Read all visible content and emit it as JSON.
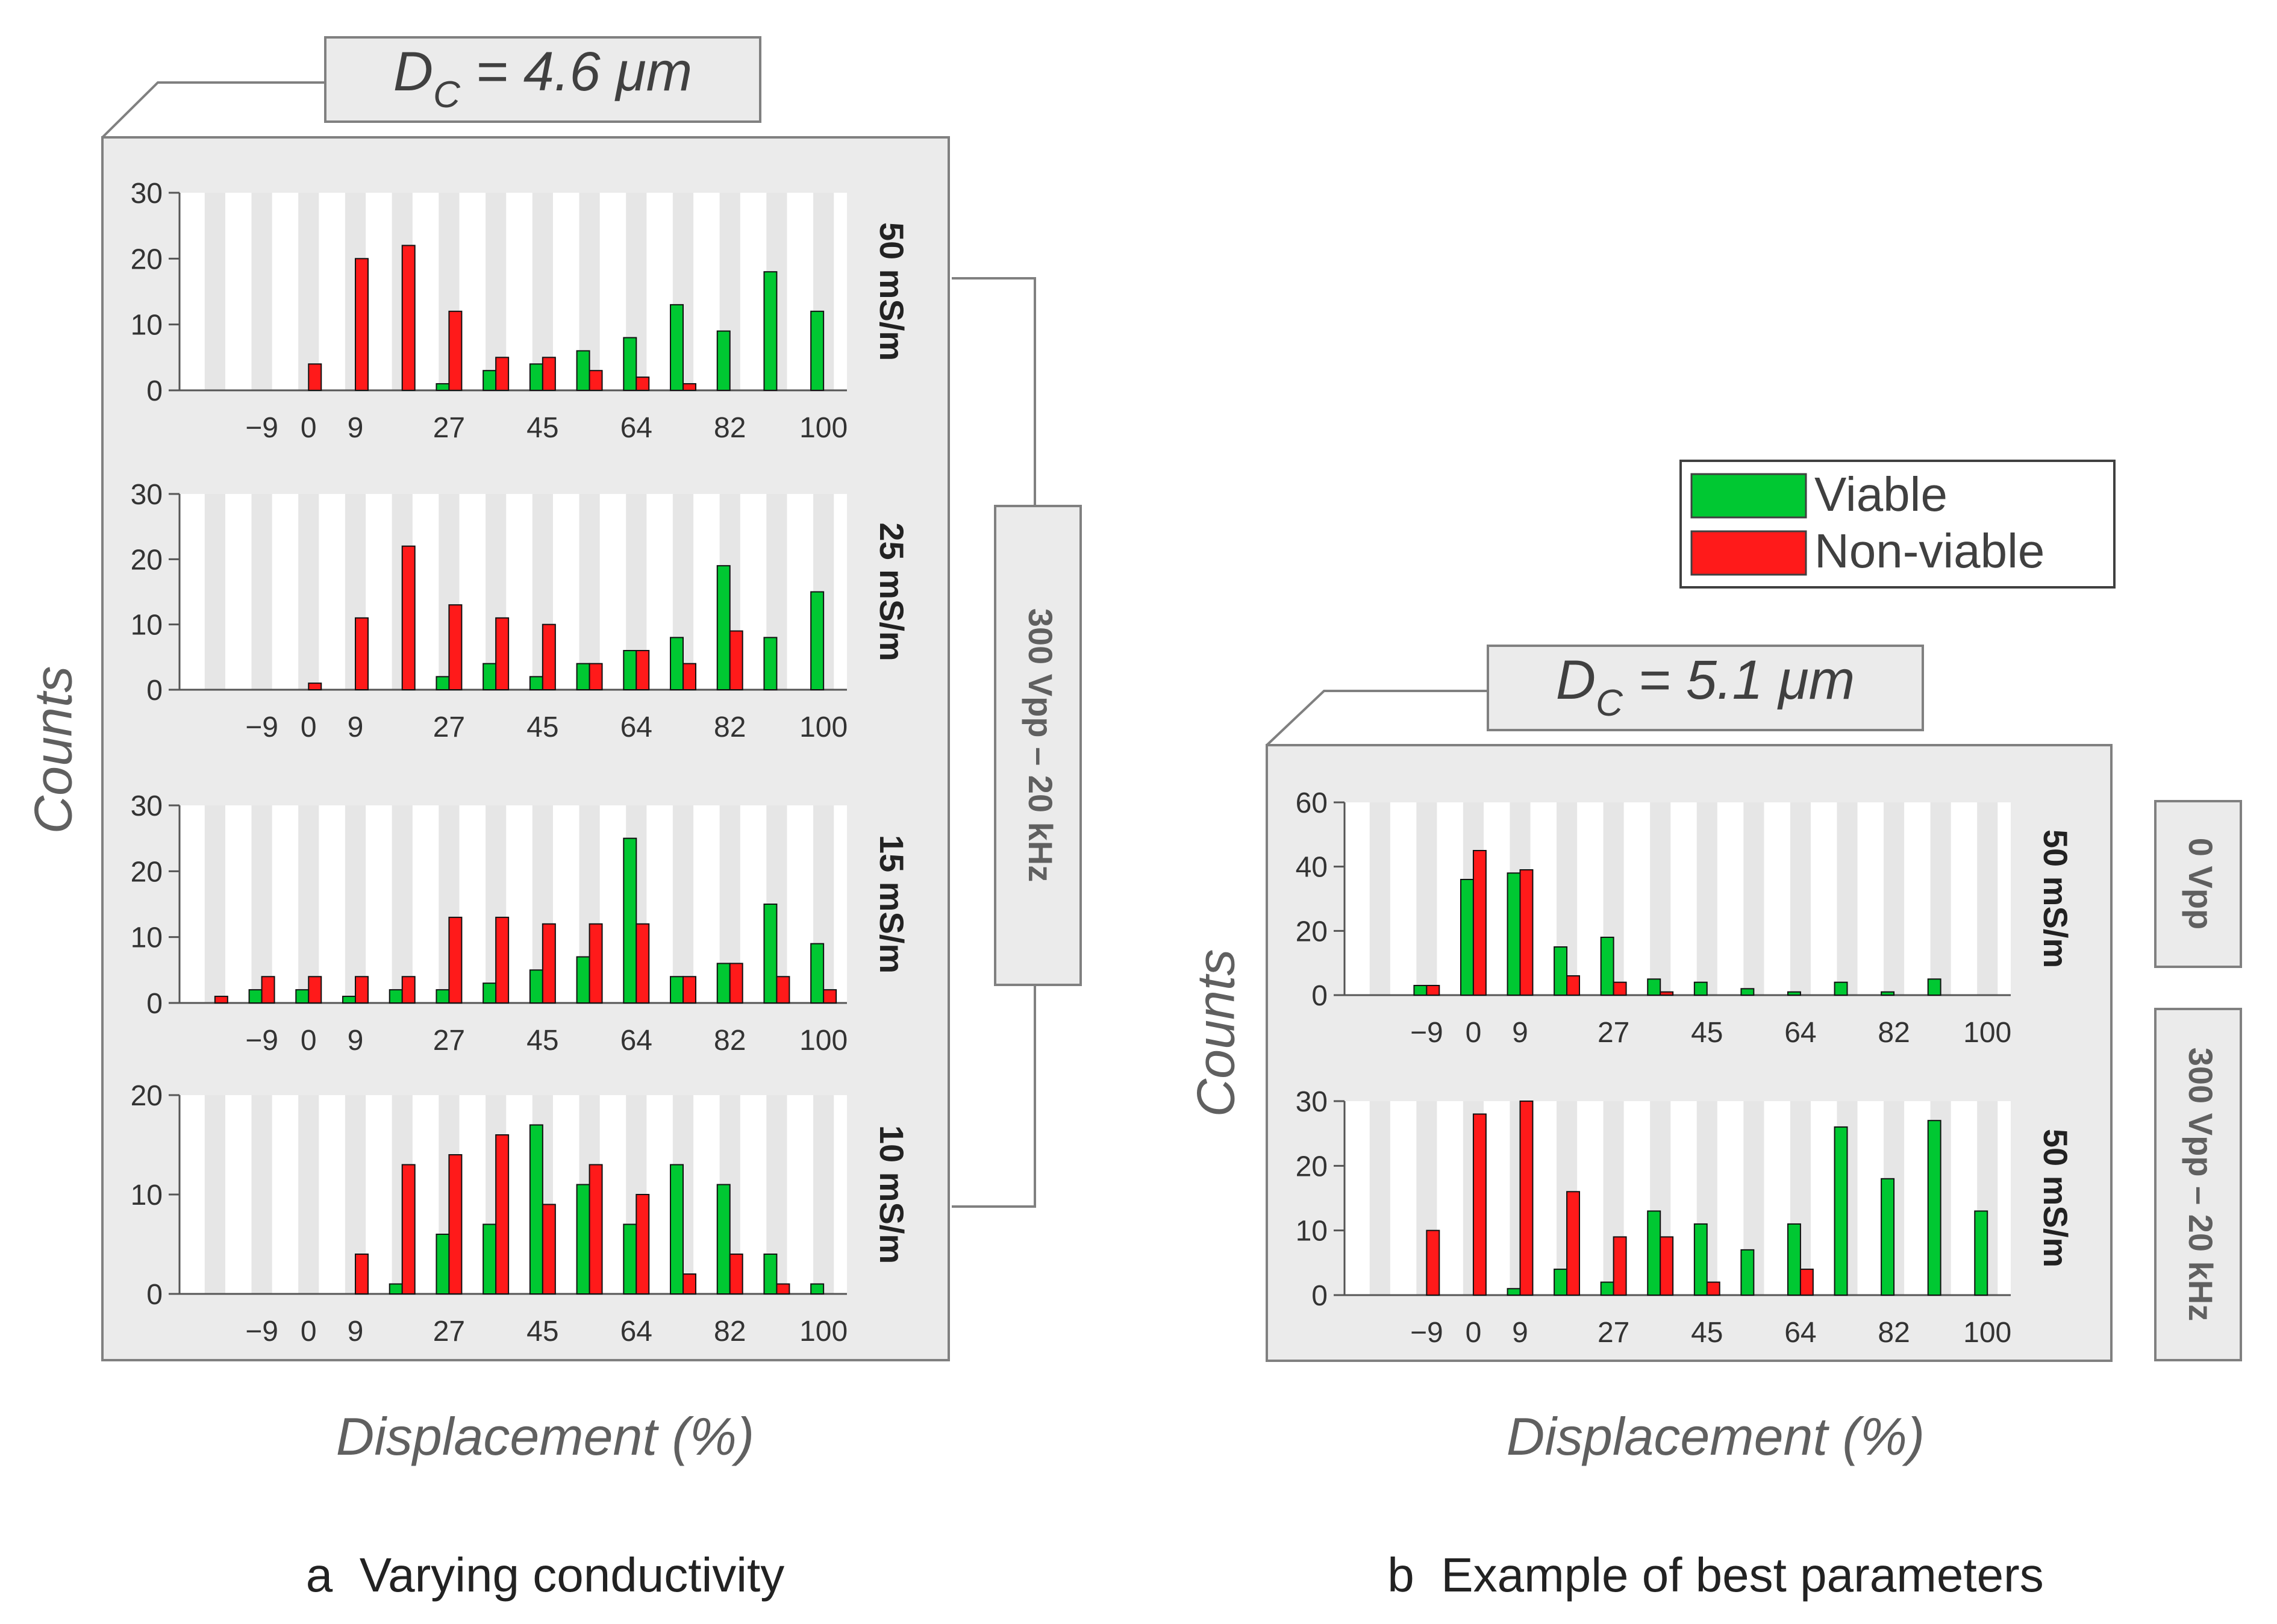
{
  "figure": {
    "y_axis_title": "Counts",
    "x_axis_title": "Displacement (%)",
    "legend": {
      "items": [
        {
          "label": "Viable",
          "color": "#00c832"
        },
        {
          "label": "Non-viable",
          "color": "#ff1a1a"
        }
      ]
    },
    "colors": {
      "viable": "#00c832",
      "nonviable": "#ff1a1a",
      "panel_bg": "#ebebeb",
      "stripe": "#e6e6e6"
    },
    "panel_a": {
      "caption": "a  Varying conductivity",
      "diameter_symbol": "D",
      "diameter_sub": "C",
      "diameter_rest": " = 4.6 μm",
      "voltage_label": "300 Vpp – 20 kHz"
    },
    "panel_b": {
      "caption": "b  Example of best parameters",
      "diameter_symbol": "D",
      "diameter_sub": "C",
      "diameter_rest": " = 5.1 μm",
      "voltage_labels": [
        "0 Vpp",
        "300 Vpp – 20 kHz"
      ]
    }
  },
  "chart_data": [
    {
      "type": "bar",
      "panel": "a",
      "row_label": "50 mS/m",
      "categories": [
        "-18",
        "-9",
        "0",
        "9",
        "18",
        "27",
        "36",
        "45",
        "55",
        "64",
        "73",
        "82",
        "91",
        "100"
      ],
      "tick_labels": [
        "−9",
        "0",
        "9",
        "27",
        "45",
        "64",
        "82",
        "100"
      ],
      "ylim": [
        0,
        30
      ],
      "yticks": [
        0,
        10,
        20,
        30
      ],
      "series": [
        {
          "name": "Viable",
          "values": [
            0,
            0,
            0,
            0,
            0,
            1,
            3,
            4,
            6,
            8,
            13,
            9,
            18,
            12
          ]
        },
        {
          "name": "Non-viable",
          "values": [
            0,
            0,
            4,
            20,
            22,
            12,
            5,
            5,
            3,
            2,
            1,
            0,
            0,
            0
          ]
        }
      ]
    },
    {
      "type": "bar",
      "panel": "a",
      "row_label": "25 mS/m",
      "categories": [
        "-18",
        "-9",
        "0",
        "9",
        "18",
        "27",
        "36",
        "45",
        "55",
        "64",
        "73",
        "82",
        "91",
        "100"
      ],
      "tick_labels": [
        "−9",
        "0",
        "9",
        "27",
        "45",
        "64",
        "82",
        "100"
      ],
      "ylim": [
        0,
        30
      ],
      "yticks": [
        0,
        10,
        20,
        30
      ],
      "series": [
        {
          "name": "Viable",
          "values": [
            0,
            0,
            0,
            0,
            0,
            2,
            4,
            2,
            4,
            6,
            8,
            19,
            8,
            15
          ]
        },
        {
          "name": "Non-viable",
          "values": [
            0,
            0,
            1,
            11,
            22,
            13,
            11,
            10,
            4,
            6,
            4,
            9,
            0,
            0
          ]
        }
      ]
    },
    {
      "type": "bar",
      "panel": "a",
      "row_label": "15 mS/m",
      "categories": [
        "-18",
        "-9",
        "0",
        "9",
        "18",
        "27",
        "36",
        "45",
        "55",
        "64",
        "73",
        "82",
        "91",
        "100"
      ],
      "tick_labels": [
        "−9",
        "0",
        "9",
        "27",
        "45",
        "64",
        "82",
        "100"
      ],
      "ylim": [
        0,
        30
      ],
      "yticks": [
        0,
        10,
        20,
        30
      ],
      "series": [
        {
          "name": "Viable",
          "values": [
            0,
            2,
            2,
            1,
            2,
            2,
            3,
            5,
            7,
            25,
            4,
            6,
            15,
            9
          ]
        },
        {
          "name": "Non-viable",
          "values": [
            1,
            4,
            4,
            4,
            4,
            13,
            13,
            12,
            12,
            12,
            4,
            6,
            4,
            2
          ]
        }
      ]
    },
    {
      "type": "bar",
      "panel": "a",
      "row_label": "10 mS/m",
      "categories": [
        "-18",
        "-9",
        "0",
        "9",
        "18",
        "27",
        "36",
        "45",
        "55",
        "64",
        "73",
        "82",
        "91",
        "100"
      ],
      "tick_labels": [
        "−9",
        "0",
        "9",
        "27",
        "45",
        "64",
        "82",
        "100"
      ],
      "ylim": [
        0,
        20
      ],
      "yticks": [
        0,
        10,
        20
      ],
      "series": [
        {
          "name": "Viable",
          "values": [
            0,
            0,
            0,
            0,
            1,
            6,
            7,
            17,
            11,
            7,
            13,
            11,
            4,
            1
          ]
        },
        {
          "name": "Non-viable",
          "values": [
            0,
            0,
            0,
            4,
            13,
            14,
            16,
            9,
            13,
            10,
            2,
            4,
            1,
            0
          ]
        }
      ]
    },
    {
      "type": "bar",
      "panel": "b",
      "row_label": "50 mS/m",
      "categories": [
        "-18",
        "-9",
        "0",
        "9",
        "18",
        "27",
        "36",
        "45",
        "55",
        "64",
        "73",
        "82",
        "91",
        "100"
      ],
      "tick_labels": [
        "−9",
        "0",
        "9",
        "27",
        "45",
        "64",
        "82",
        "100"
      ],
      "ylim": [
        0,
        60
      ],
      "yticks": [
        0,
        20,
        40,
        60
      ],
      "series": [
        {
          "name": "Viable",
          "values": [
            0,
            3,
            36,
            38,
            15,
            18,
            5,
            4,
            2,
            1,
            4,
            1,
            5,
            0
          ]
        },
        {
          "name": "Non-viable",
          "values": [
            0,
            3,
            45,
            39,
            6,
            4,
            1,
            0,
            0,
            0,
            0,
            0,
            0,
            0
          ]
        }
      ]
    },
    {
      "type": "bar",
      "panel": "b",
      "row_label": "50 mS/m",
      "categories": [
        "-18",
        "-9",
        "0",
        "9",
        "18",
        "27",
        "36",
        "45",
        "55",
        "64",
        "73",
        "82",
        "91",
        "100"
      ],
      "tick_labels": [
        "−9",
        "0",
        "9",
        "27",
        "45",
        "64",
        "82",
        "100"
      ],
      "ylim": [
        0,
        30
      ],
      "yticks": [
        0,
        10,
        20,
        30
      ],
      "series": [
        {
          "name": "Viable",
          "values": [
            0,
            0,
            0,
            1,
            4,
            2,
            13,
            11,
            7,
            11,
            26,
            18,
            27,
            13
          ]
        },
        {
          "name": "Non-viable",
          "values": [
            0,
            10,
            28,
            30,
            16,
            9,
            9,
            2,
            0,
            4,
            0,
            0,
            0,
            0
          ]
        }
      ]
    }
  ]
}
